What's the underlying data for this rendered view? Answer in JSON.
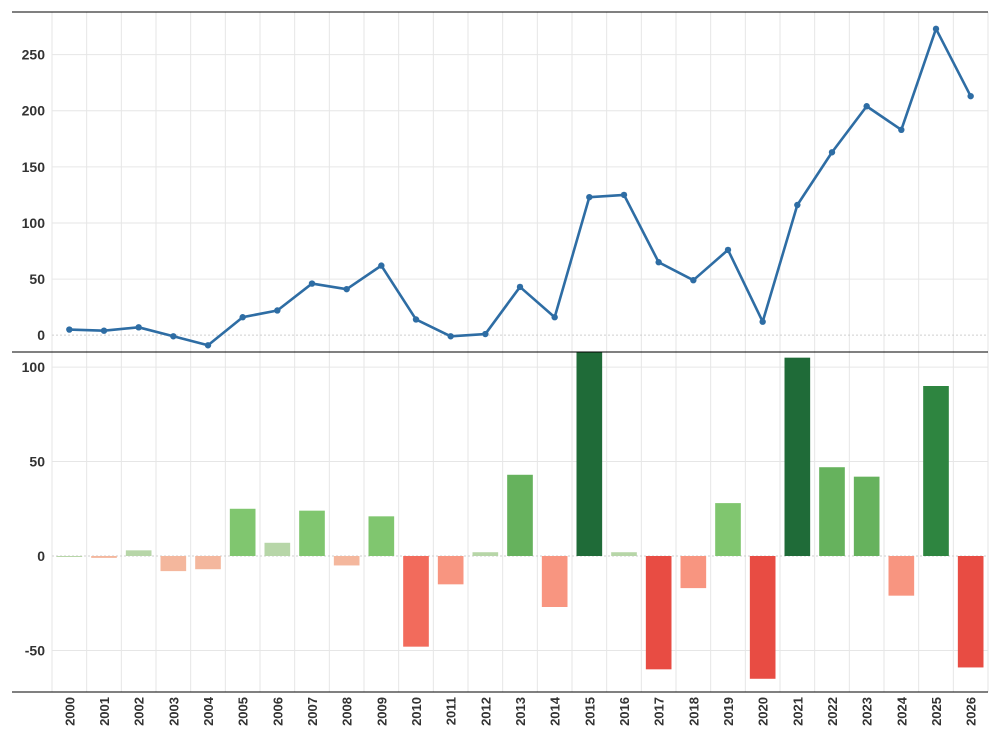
{
  "chart_data": [
    {
      "type": "line",
      "title": "",
      "xlabel": "",
      "ylabel": "",
      "x": [
        "2000",
        "2001",
        "2002",
        "2003",
        "2004",
        "2005",
        "2006",
        "2007",
        "2008",
        "2009",
        "2010",
        "2011",
        "2012",
        "2013",
        "2014",
        "2015",
        "2016",
        "2017",
        "2018",
        "2019",
        "2020",
        "2021",
        "2022",
        "2023",
        "2024",
        "2025",
        "2026"
      ],
      "series": [
        {
          "values": [
            5,
            4,
            7,
            -1,
            -9,
            16,
            22,
            46,
            41,
            62,
            14,
            -1,
            1,
            43,
            16,
            123,
            125,
            65,
            49,
            76,
            12,
            116,
            163,
            204,
            183,
            273,
            213
          ]
        }
      ],
      "ylim": [
        -15,
        288
      ],
      "yticks": [
        0,
        50,
        100,
        150,
        200,
        250
      ],
      "grid": true,
      "line_color": "#2e6da4"
    },
    {
      "type": "bar",
      "title": "",
      "xlabel": "",
      "ylabel": "",
      "categories": [
        "2000",
        "2001",
        "2002",
        "2003",
        "2004",
        "2005",
        "2006",
        "2007",
        "2008",
        "2009",
        "2010",
        "2011",
        "2012",
        "2013",
        "2014",
        "2015",
        "2016",
        "2017",
        "2018",
        "2019",
        "2020",
        "2021",
        "2022",
        "2023",
        "2024",
        "2025",
        "2026"
      ],
      "values": [
        0,
        -1,
        3,
        -8,
        -7,
        25,
        7,
        24,
        -5,
        21,
        -48,
        -15,
        2,
        43,
        -27,
        108,
        2,
        -60,
        -17,
        28,
        -65,
        105,
        47,
        42,
        -21,
        90,
        -59
      ],
      "ylim": [
        -72,
        108
      ],
      "yticks": [
        -50,
        0,
        50,
        100
      ],
      "grid": true,
      "colors": {
        "pos_strong": "#1f6b38",
        "pos_medium": "#2e8540",
        "pos_mid": "#66b25d",
        "pos_light": "#80c66f",
        "pos_faint": "#b7d6a8",
        "neg_strong": "#e84c43",
        "neg_medium": "#f26b5c",
        "neg_light": "#f89580",
        "neg_faint": "#f4b79d"
      }
    }
  ]
}
